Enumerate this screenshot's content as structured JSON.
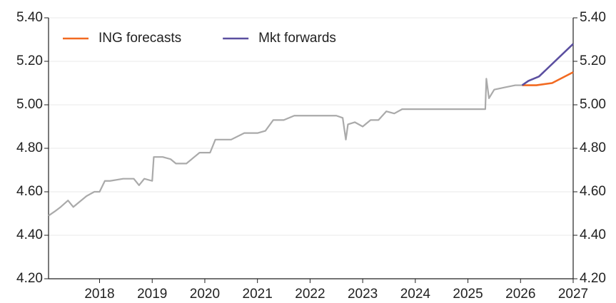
{
  "chart_data": {
    "type": "line",
    "xlim": [
      2017.03,
      2027
    ],
    "xticks": [
      2018,
      2019,
      2020,
      2021,
      2022,
      2023,
      2024,
      2025,
      2026,
      2027
    ],
    "ylim": [
      4.2,
      5.4
    ],
    "yticks": [
      {
        "value": 4.2,
        "label": "4.20"
      },
      {
        "value": 4.4,
        "label": "4.40"
      },
      {
        "value": 4.6,
        "label": "4.60"
      },
      {
        "value": 4.8,
        "label": "4.80"
      },
      {
        "value": 5.0,
        "label": "5.00"
      },
      {
        "value": 5.2,
        "label": "5.20"
      },
      {
        "value": 5.4,
        "label": "5.40"
      }
    ],
    "y2lim": [
      4.2,
      5.4
    ],
    "y2ticks": [
      {
        "value": 4.2,
        "label": "4.20"
      },
      {
        "value": 4.4,
        "label": "4.40"
      },
      {
        "value": 4.6,
        "label": "4.60"
      },
      {
        "value": 4.8,
        "label": "4.80"
      },
      {
        "value": 5.0,
        "label": "5.00"
      },
      {
        "value": 5.2,
        "label": "5.20"
      },
      {
        "value": 5.4,
        "label": "5.40"
      }
    ],
    "grid": true,
    "legend": "top-left",
    "series": [
      {
        "color": "#aaaaaa",
        "x": [
          2017.03,
          2017.15,
          2017.26,
          2017.4,
          2017.5,
          2017.6,
          2017.75,
          2017.9,
          2018.0,
          2018.1,
          2018.2,
          2018.45,
          2018.65,
          2018.75,
          2018.85,
          2019.0,
          2019.03,
          2019.2,
          2019.35,
          2019.45,
          2019.65,
          2019.8,
          2019.9,
          2020.1,
          2020.2,
          2020.5,
          2020.75,
          2021.0,
          2021.15,
          2021.3,
          2021.5,
          2021.7,
          2022.0,
          2022.5,
          2022.62,
          2022.68,
          2022.72,
          2022.85,
          2023.0,
          2023.15,
          2023.3,
          2023.45,
          2023.6,
          2023.75,
          2024.0,
          2024.5,
          2025.0,
          2025.33,
          2025.35,
          2025.4,
          2025.5,
          2025.7,
          2025.9,
          2026.03
        ],
        "values": [
          4.49,
          4.51,
          4.53,
          4.56,
          4.53,
          4.55,
          4.58,
          4.6,
          4.6,
          4.65,
          4.65,
          4.66,
          4.66,
          4.63,
          4.66,
          4.65,
          4.76,
          4.76,
          4.75,
          4.73,
          4.73,
          4.76,
          4.78,
          4.78,
          4.84,
          4.84,
          4.87,
          4.87,
          4.88,
          4.93,
          4.93,
          4.95,
          4.95,
          4.95,
          4.94,
          4.84,
          4.91,
          4.92,
          4.9,
          4.93,
          4.93,
          4.97,
          4.96,
          4.98,
          4.98,
          4.98,
          4.98,
          4.98,
          5.12,
          5.03,
          5.07,
          5.08,
          5.09,
          5.09
        ]
      },
      {
        "name": "ING forecasts",
        "color": "#f26a21",
        "x": [
          2026.03,
          2026.3,
          2026.6,
          2027.0
        ],
        "values": [
          5.09,
          5.09,
          5.1,
          5.15
        ]
      },
      {
        "name": "Mkt forwards",
        "color": "#5b4fa0",
        "x": [
          2026.03,
          2026.15,
          2026.35,
          2027.0
        ],
        "values": [
          5.09,
          5.11,
          5.13,
          5.28
        ]
      }
    ]
  }
}
